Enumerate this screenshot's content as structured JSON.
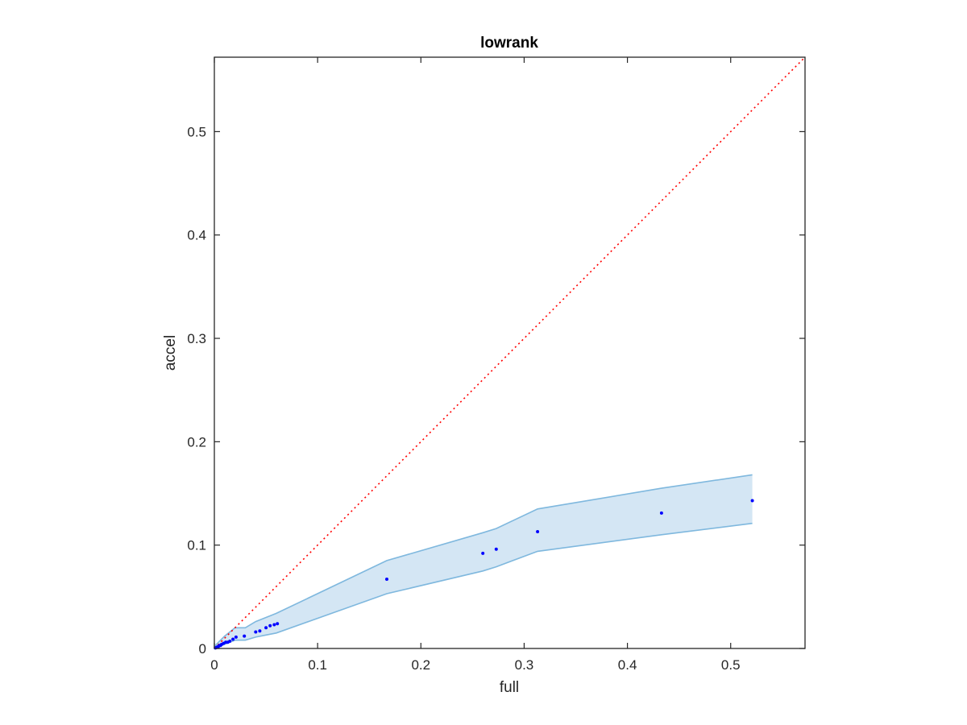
{
  "chart_data": {
    "type": "scatter",
    "title": "lowrank",
    "xlabel": "full",
    "ylabel": "accel",
    "xlim": [
      0,
      0.572
    ],
    "ylim": [
      0,
      0.572
    ],
    "x_ticks": [
      0,
      0.1,
      0.2,
      0.3,
      0.4,
      0.5
    ],
    "y_ticks": [
      0,
      0.1,
      0.2,
      0.3,
      0.4,
      0.5
    ],
    "x_tick_labels": [
      "0",
      "0.1",
      "0.2",
      "0.3",
      "0.4",
      "0.5"
    ],
    "y_tick_labels": [
      "0",
      "0.1",
      "0.2",
      "0.3",
      "0.4",
      "0.5"
    ],
    "grid": false,
    "colors": {
      "points": "#0000ff",
      "diagonal": "#ff0000",
      "band_fill": "#d4e6f4",
      "band_edge": "#7fb8de",
      "axes": "#262626"
    },
    "points": {
      "x": [
        0.001,
        0.002,
        0.003,
        0.004,
        0.005,
        0.006,
        0.007,
        0.009,
        0.011,
        0.013,
        0.015,
        0.018,
        0.021,
        0.029,
        0.04,
        0.044,
        0.05,
        0.054,
        0.058,
        0.061,
        0.167,
        0.26,
        0.273,
        0.313,
        0.433,
        0.521
      ],
      "y": [
        0.0005,
        0.001,
        0.0015,
        0.002,
        0.003,
        0.003,
        0.004,
        0.005,
        0.006,
        0.006,
        0.007,
        0.009,
        0.011,
        0.012,
        0.016,
        0.017,
        0.02,
        0.022,
        0.023,
        0.024,
        0.067,
        0.092,
        0.096,
        0.113,
        0.131,
        0.143
      ]
    },
    "band": {
      "x": [
        0,
        0.005,
        0.01,
        0.015,
        0.02,
        0.03,
        0.04,
        0.05,
        0.06,
        0.167,
        0.26,
        0.273,
        0.313,
        0.433,
        0.521
      ],
      "upper": [
        0.002,
        0.007,
        0.012,
        0.016,
        0.02,
        0.02,
        0.026,
        0.03,
        0.034,
        0.085,
        0.112,
        0.116,
        0.135,
        0.155,
        0.168
      ],
      "lower": [
        0,
        0.002,
        0.004,
        0.006,
        0.008,
        0.008,
        0.011,
        0.013,
        0.015,
        0.053,
        0.075,
        0.079,
        0.094,
        0.11,
        0.121
      ]
    },
    "reference_line": {
      "style": "dotted",
      "x": [
        0,
        0.572
      ],
      "y": [
        0,
        0.572
      ]
    }
  }
}
